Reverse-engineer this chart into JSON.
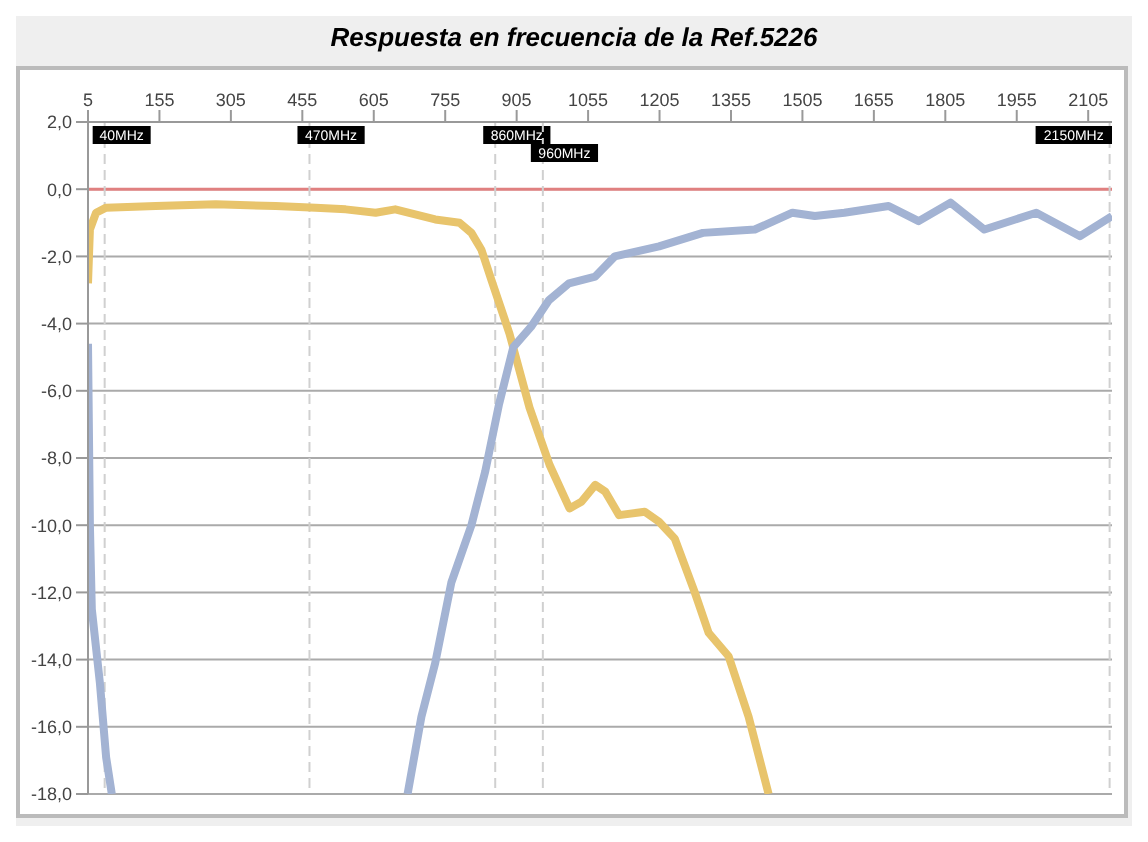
{
  "chart_data": {
    "type": "line",
    "title": "Respuesta en frecuencia de la Ref.5226",
    "xlim": [
      5,
      2155
    ],
    "xticks": [
      5,
      155,
      305,
      455,
      605,
      755,
      905,
      1055,
      1205,
      1355,
      1505,
      1655,
      1805,
      1955,
      2105
    ],
    "ylim": [
      -18,
      2
    ],
    "yticks": [
      {
        "value": 2,
        "label": "2,0"
      },
      {
        "value": 0,
        "label": "0,0"
      },
      {
        "value": -2,
        "label": "-2,0"
      },
      {
        "value": -4,
        "label": "-4,0"
      },
      {
        "value": -6,
        "label": "-6,0"
      },
      {
        "value": -8,
        "label": "-8,0"
      },
      {
        "value": -10,
        "label": "-10,0"
      },
      {
        "value": -12,
        "label": "-12,0"
      },
      {
        "value": -14,
        "label": "-14,0"
      },
      {
        "value": -16,
        "label": "-16,0"
      },
      {
        "value": -18,
        "label": "-18,0"
      }
    ],
    "grid": "y",
    "marker": "none",
    "line_style": "solid",
    "ref_lines": [
      {
        "axis": "y",
        "value": 0,
        "color": "#e08080",
        "line_style": "solid"
      },
      {
        "axis": "x",
        "value": 40,
        "label": "40MHz",
        "color": "#d0d0d0",
        "line_style": "dashed"
      },
      {
        "axis": "x",
        "value": 470,
        "label": "470MHz",
        "color": "#d0d0d0",
        "line_style": "dashed"
      },
      {
        "axis": "x",
        "value": 860,
        "label": "860MHz",
        "color": "#d0d0d0",
        "line_style": "dashed"
      },
      {
        "axis": "x",
        "value": 960,
        "label": "960MHz",
        "color": "#d0d0d0",
        "line_style": "dashed"
      },
      {
        "axis": "x",
        "value": 2150,
        "label": "2150MHz",
        "color": "#d0d0d0",
        "line_style": "dashed"
      }
    ],
    "series": [
      {
        "color": "#e8c46c",
        "x": [
          5,
          9,
          22,
          43,
          147,
          273,
          399,
          483,
          546,
          609,
          650,
          692,
          734,
          785,
          810,
          831,
          852,
          890,
          932,
          974,
          1016,
          1041,
          1070,
          1091,
          1120,
          1174,
          1204,
          1237,
          1279,
          1308,
          1350,
          1392,
          1434
        ],
        "values": [
          -2.8,
          -1.2,
          -0.7,
          -0.55,
          -0.5,
          -0.45,
          -0.5,
          -0.55,
          -0.6,
          -0.7,
          -0.6,
          -0.75,
          -0.9,
          -1.0,
          -1.3,
          -1.8,
          -2.7,
          -4.3,
          -6.5,
          -8.2,
          -9.5,
          -9.3,
          -8.8,
          -9.0,
          -9.7,
          -9.6,
          -9.9,
          -10.4,
          -12.0,
          -13.2,
          -13.9,
          -15.7,
          -18.0
        ]
      },
      {
        "color": "#a3b3d3",
        "x": [
          5,
          9,
          13,
          30,
          43,
          55,
          400,
          676,
          705,
          734,
          768,
          810,
          839,
          868,
          898,
          935,
          973,
          1015,
          1070,
          1111,
          1204,
          1296,
          1405,
          1484,
          1531,
          1593,
          1686,
          1749,
          1816,
          1887,
          1996,
          2088,
          2155
        ],
        "values": [
          -4.6,
          -10,
          -12.5,
          -14.7,
          -16.9,
          -18.0,
          null,
          -18.0,
          -15.7,
          -14.1,
          -11.7,
          -10,
          -8.4,
          -6.4,
          -4.7,
          -4.1,
          -3.3,
          -2.8,
          -2.6,
          -2.0,
          -1.7,
          -1.3,
          -1.2,
          -0.7,
          -0.8,
          -0.7,
          -0.5,
          -0.95,
          -0.4,
          -1.2,
          -0.7,
          -1.4,
          -0.8
        ]
      }
    ]
  }
}
